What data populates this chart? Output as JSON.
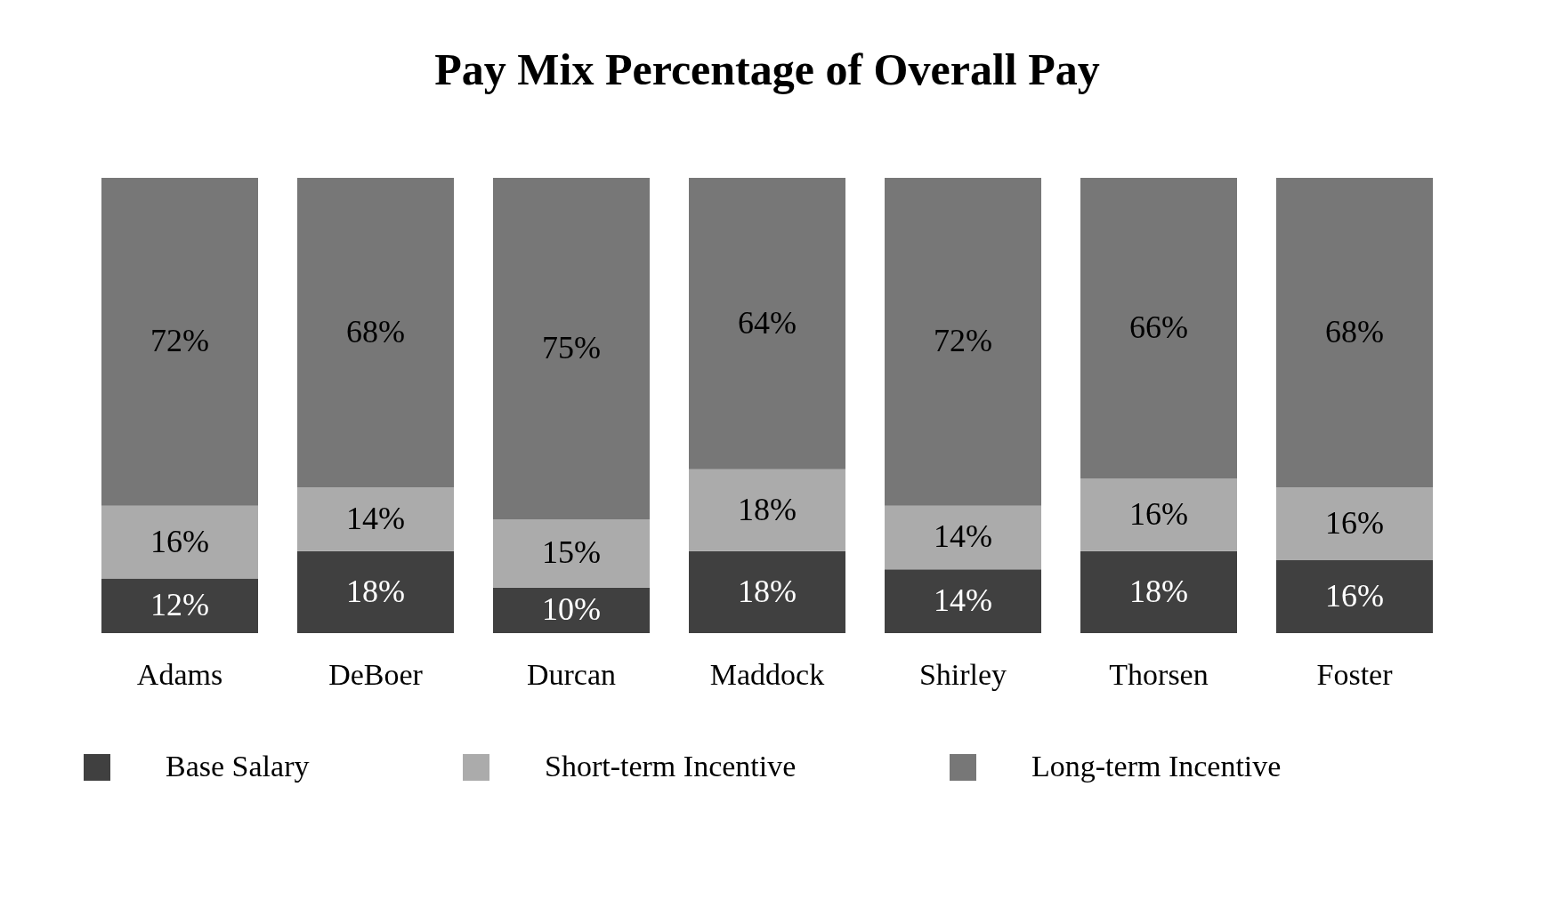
{
  "chart_data": {
    "type": "bar",
    "title": "Pay Mix Percentage of Overall Pay",
    "categories": [
      "Adams",
      "DeBoer",
      "Durcan",
      "Maddock",
      "Shirley",
      "Thorsen",
      "Foster"
    ],
    "stacked": true,
    "legend": "bottom",
    "grid": false,
    "tick_labels": "x",
    "series": [
      {
        "name": "Base Salary",
        "color": "#404040",
        "values": [
          12,
          18,
          10,
          18,
          14,
          18,
          16
        ],
        "value_labels": [
          "12%",
          "18%",
          "10%",
          "18%",
          "14%",
          "18%",
          "16%"
        ]
      },
      {
        "name": "Short-term Incentive",
        "color": "#ababab",
        "values": [
          16,
          14,
          15,
          18,
          14,
          16,
          16
        ],
        "value_labels": [
          "16%",
          "14%",
          "15%",
          "18%",
          "14%",
          "16%",
          "16%"
        ]
      },
      {
        "name": "Long-term Incentive",
        "color": "#777777",
        "values": [
          72,
          68,
          75,
          64,
          72,
          66,
          68
        ],
        "value_labels": [
          "72%",
          "68%",
          "75%",
          "64%",
          "72%",
          "66%",
          "68%"
        ]
      }
    ]
  }
}
